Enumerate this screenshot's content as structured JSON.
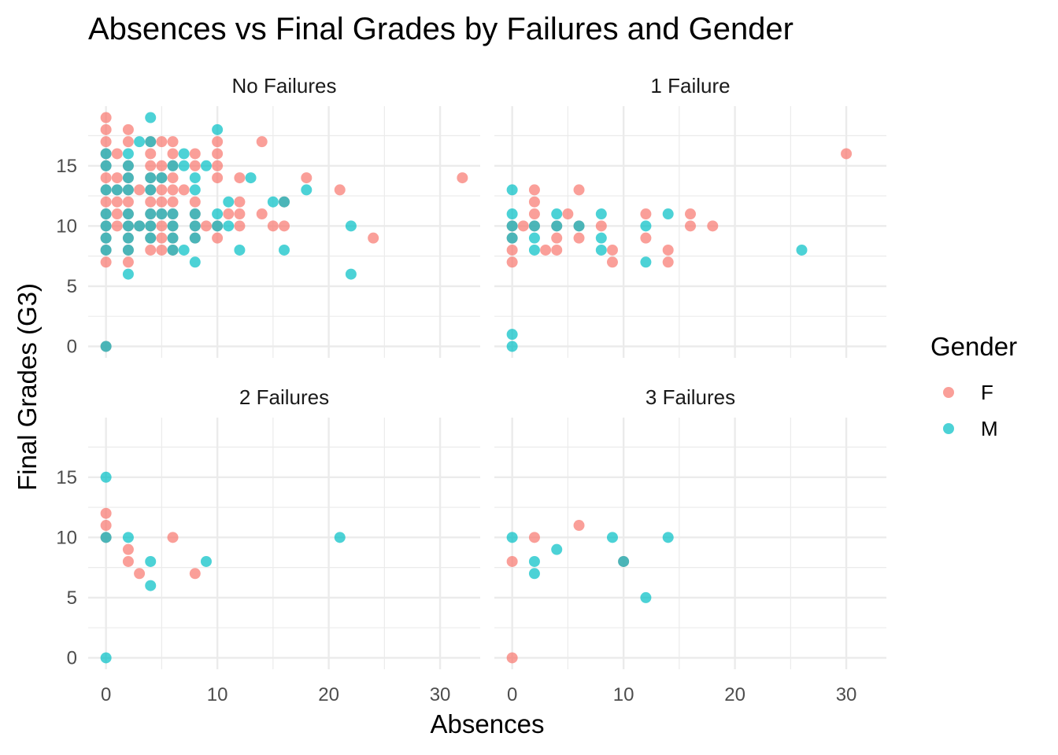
{
  "chart_data": {
    "type": "scatter",
    "title": "Absences vs Final Grades by Failures and Gender",
    "xlabel": "Absences",
    "ylabel": "Final Grades (G3)",
    "xlim": [
      -1.6,
      33.6
    ],
    "ylim": [
      -0.95,
      19.95
    ],
    "x_ticks": [
      0,
      10,
      20,
      30
    ],
    "y_ticks": [
      0,
      5,
      10,
      15
    ],
    "grid": true,
    "legend": {
      "title": "Gender",
      "position": "right",
      "entries": [
        {
          "label": "F",
          "color": "#F8766D"
        },
        {
          "label": "M",
          "color": "#00BFC4"
        }
      ]
    },
    "colors": {
      "F": "#F8766D",
      "M": "#00BFC4"
    },
    "panels": [
      {
        "label": "No Failures",
        "series": [
          {
            "name": "F",
            "points": [
              [
                0,
                19
              ],
              [
                0,
                18
              ],
              [
                0,
                17
              ],
              [
                0,
                16
              ],
              [
                0,
                15
              ],
              [
                0,
                14
              ],
              [
                0,
                13
              ],
              [
                0,
                12
              ],
              [
                0,
                11
              ],
              [
                0,
                10
              ],
              [
                0,
                9
              ],
              [
                0,
                8
              ],
              [
                0,
                7
              ],
              [
                1,
                16
              ],
              [
                1,
                14
              ],
              [
                1,
                13
              ],
              [
                1,
                12
              ],
              [
                1,
                11
              ],
              [
                1,
                10
              ],
              [
                2,
                18
              ],
              [
                2,
                17
              ],
              [
                2,
                15
              ],
              [
                2,
                14
              ],
              [
                2,
                13
              ],
              [
                2,
                12
              ],
              [
                2,
                11
              ],
              [
                2,
                10
              ],
              [
                2,
                9
              ],
              [
                2,
                8
              ],
              [
                2,
                7
              ],
              [
                3,
                13
              ],
              [
                3,
                10
              ],
              [
                4,
                17
              ],
              [
                4,
                16
              ],
              [
                4,
                15
              ],
              [
                4,
                14
              ],
              [
                4,
                13
              ],
              [
                4,
                12
              ],
              [
                4,
                11
              ],
              [
                4,
                10
              ],
              [
                4,
                9
              ],
              [
                4,
                8
              ],
              [
                5,
                17
              ],
              [
                5,
                15
              ],
              [
                5,
                14
              ],
              [
                5,
                13
              ],
              [
                5,
                12
              ],
              [
                5,
                11
              ],
              [
                5,
                10
              ],
              [
                5,
                9
              ],
              [
                5,
                8
              ],
              [
                6,
                17
              ],
              [
                6,
                16
              ],
              [
                6,
                15
              ],
              [
                6,
                14
              ],
              [
                6,
                13
              ],
              [
                6,
                12
              ],
              [
                6,
                11
              ],
              [
                6,
                10
              ],
              [
                6,
                9
              ],
              [
                6,
                8
              ],
              [
                7,
                13
              ],
              [
                8,
                16
              ],
              [
                8,
                15
              ],
              [
                8,
                12
              ],
              [
                8,
                11
              ],
              [
                8,
                10
              ],
              [
                8,
                9
              ],
              [
                9,
                10
              ],
              [
                10,
                17
              ],
              [
                10,
                16
              ],
              [
                10,
                15
              ],
              [
                10,
                14
              ],
              [
                10,
                10
              ],
              [
                10,
                9
              ],
              [
                11,
                11
              ],
              [
                12,
                14
              ],
              [
                12,
                12
              ],
              [
                12,
                11
              ],
              [
                12,
                10
              ],
              [
                14,
                17
              ],
              [
                14,
                11
              ],
              [
                15,
                10
              ],
              [
                16,
                12
              ],
              [
                16,
                10
              ],
              [
                18,
                14
              ],
              [
                21,
                13
              ],
              [
                24,
                9
              ],
              [
                32,
                14
              ],
              [
                0,
                0
              ]
            ]
          },
          {
            "name": "M",
            "points": [
              [
                0,
                16
              ],
              [
                0,
                15
              ],
              [
                0,
                13
              ],
              [
                0,
                11
              ],
              [
                0,
                10
              ],
              [
                0,
                9
              ],
              [
                0,
                8
              ],
              [
                0,
                0
              ],
              [
                1,
                13
              ],
              [
                2,
                16
              ],
              [
                2,
                15
              ],
              [
                2,
                14
              ],
              [
                2,
                13
              ],
              [
                2,
                11
              ],
              [
                2,
                10
              ],
              [
                2,
                9
              ],
              [
                2,
                8
              ],
              [
                2,
                6
              ],
              [
                3,
                17
              ],
              [
                3,
                10
              ],
              [
                4,
                19
              ],
              [
                4,
                17
              ],
              [
                4,
                14
              ],
              [
                4,
                13
              ],
              [
                4,
                11
              ],
              [
                4,
                10
              ],
              [
                4,
                9
              ],
              [
                5,
                14
              ],
              [
                5,
                11
              ],
              [
                6,
                15
              ],
              [
                6,
                11
              ],
              [
                6,
                10
              ],
              [
                6,
                9
              ],
              [
                6,
                8
              ],
              [
                7,
                16
              ],
              [
                7,
                15
              ],
              [
                7,
                8
              ],
              [
                8,
                14
              ],
              [
                8,
                13
              ],
              [
                8,
                11
              ],
              [
                8,
                10
              ],
              [
                8,
                9
              ],
              [
                8,
                7
              ],
              [
                9,
                15
              ],
              [
                10,
                18
              ],
              [
                10,
                11
              ],
              [
                10,
                10
              ],
              [
                11,
                12
              ],
              [
                11,
                10
              ],
              [
                12,
                8
              ],
              [
                13,
                14
              ],
              [
                15,
                12
              ],
              [
                16,
                12
              ],
              [
                16,
                8
              ],
              [
                18,
                13
              ],
              [
                22,
                10
              ],
              [
                22,
                6
              ]
            ]
          }
        ]
      },
      {
        "label": "1 Failure",
        "series": [
          {
            "name": "F",
            "points": [
              [
                0,
                10
              ],
              [
                0,
                9
              ],
              [
                0,
                8
              ],
              [
                0,
                7
              ],
              [
                1,
                10
              ],
              [
                2,
                13
              ],
              [
                2,
                12
              ],
              [
                2,
                11
              ],
              [
                2,
                10
              ],
              [
                3,
                8
              ],
              [
                4,
                10
              ],
              [
                4,
                9
              ],
              [
                4,
                8
              ],
              [
                5,
                11
              ],
              [
                6,
                13
              ],
              [
                6,
                10
              ],
              [
                6,
                9
              ],
              [
                8,
                10
              ],
              [
                9,
                8
              ],
              [
                9,
                7
              ],
              [
                12,
                11
              ],
              [
                12,
                9
              ],
              [
                14,
                8
              ],
              [
                14,
                7
              ],
              [
                16,
                11
              ],
              [
                16,
                10
              ],
              [
                18,
                10
              ],
              [
                30,
                16
              ]
            ]
          },
          {
            "name": "M",
            "points": [
              [
                0,
                13
              ],
              [
                0,
                11
              ],
              [
                0,
                10
              ],
              [
                0,
                9
              ],
              [
                0,
                1
              ],
              [
                0,
                0
              ],
              [
                2,
                10
              ],
              [
                2,
                9
              ],
              [
                2,
                8
              ],
              [
                4,
                11
              ],
              [
                4,
                10
              ],
              [
                6,
                10
              ],
              [
                8,
                11
              ],
              [
                8,
                9
              ],
              [
                8,
                8
              ],
              [
                12,
                10
              ],
              [
                12,
                7
              ],
              [
                14,
                11
              ],
              [
                26,
                8
              ]
            ]
          }
        ]
      },
      {
        "label": "2 Failures",
        "series": [
          {
            "name": "F",
            "points": [
              [
                0,
                12
              ],
              [
                0,
                11
              ],
              [
                0,
                10
              ],
              [
                2,
                9
              ],
              [
                2,
                8
              ],
              [
                3,
                7
              ],
              [
                6,
                10
              ],
              [
                8,
                7
              ]
            ]
          },
          {
            "name": "M",
            "points": [
              [
                0,
                15
              ],
              [
                0,
                10
              ],
              [
                0,
                0
              ],
              [
                2,
                10
              ],
              [
                4,
                8
              ],
              [
                4,
                6
              ],
              [
                9,
                8
              ],
              [
                21,
                10
              ]
            ]
          }
        ]
      },
      {
        "label": "3 Failures",
        "series": [
          {
            "name": "F",
            "points": [
              [
                0,
                8
              ],
              [
                0,
                0
              ],
              [
                2,
                10
              ],
              [
                6,
                11
              ],
              [
                10,
                8
              ]
            ]
          },
          {
            "name": "M",
            "points": [
              [
                0,
                10
              ],
              [
                2,
                8
              ],
              [
                2,
                7
              ],
              [
                4,
                9
              ],
              [
                9,
                10
              ],
              [
                10,
                8
              ],
              [
                12,
                5
              ],
              [
                14,
                10
              ]
            ]
          }
        ]
      }
    ]
  }
}
